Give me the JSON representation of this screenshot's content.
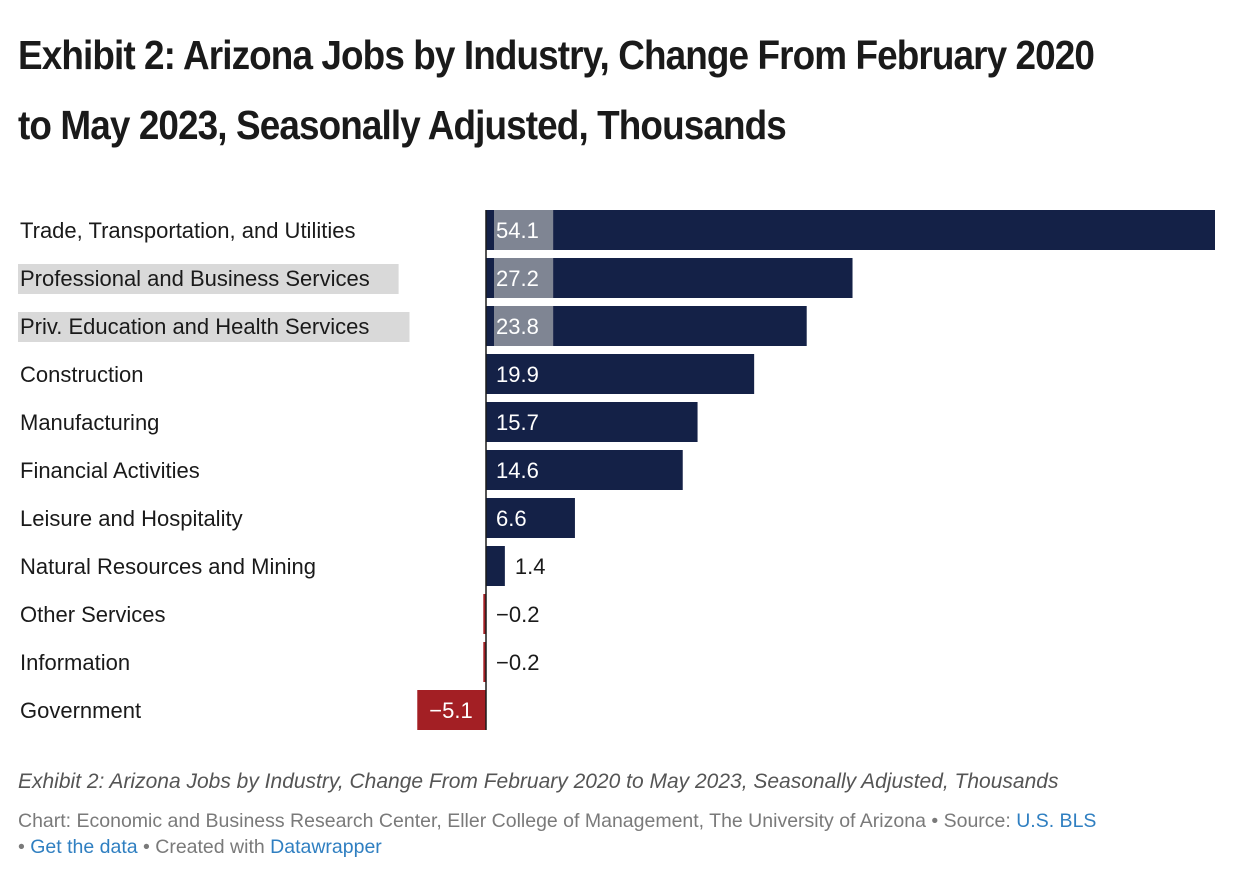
{
  "title": "Exhibit 2: Arizona Jobs by Industry, Change From February 2020 to May 2023, Seasonally Adjusted, Thousands",
  "caption": "Exhibit 2: Arizona Jobs by Industry, Change From February 2020 to May 2023, Seasonally Adjusted, Thousands",
  "footer": {
    "chart_credit": "Chart: Economic and Business Research Center, Eller College of Management, The University of Arizona",
    "sep1": " • ",
    "source_prefix": "Source: ",
    "source_link": "U.S. BLS",
    "sep2": " • ",
    "get_data": "Get the data",
    "sep3": " • ",
    "created_with": "Created with ",
    "datawrapper": "Datawrapper"
  },
  "colors": {
    "positive": "#142147",
    "negative": "#a31f24",
    "highlight": "#d9d9d9",
    "label_bg": "#7f8593",
    "zero_line": "#1a1a1a"
  },
  "chart_data": {
    "type": "bar",
    "orientation": "horizontal",
    "categories": [
      "Trade, Transportation, and Utilities",
      "Professional and Business Services",
      "Priv. Education and Health Services",
      "Construction",
      "Manufacturing",
      "Financial Activities",
      "Leisure and Hospitality",
      "Natural Resources and Mining",
      "Other Services",
      "Information",
      "Government"
    ],
    "values": [
      54.1,
      27.2,
      23.8,
      19.9,
      15.7,
      14.6,
      6.6,
      1.4,
      -0.2,
      -0.2,
      -5.1
    ],
    "value_labels": [
      "54.1",
      "27.2",
      "23.8",
      "19.9",
      "15.7",
      "14.6",
      "6.6",
      "1.4",
      "−0.2",
      "−0.2",
      "−5.1"
    ],
    "highlighted": [
      false,
      true,
      true,
      false,
      false,
      false,
      false,
      false,
      false,
      false,
      false
    ],
    "label_shaded": [
      true,
      true,
      true,
      false,
      false,
      false,
      false,
      false,
      false,
      false,
      false
    ],
    "xlim": [
      -5.1,
      54.1
    ]
  }
}
